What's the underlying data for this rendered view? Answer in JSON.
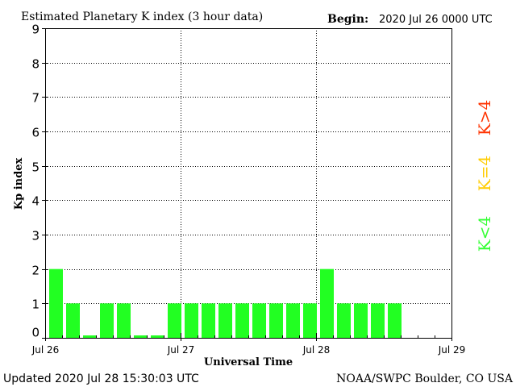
{
  "chart_data": {
    "type": "bar",
    "title": "Estimated Planetary K index (3 hour data)",
    "begin_label": "Begin:",
    "begin_value": "2020 Jul 26 0000 UTC",
    "xlabel": "Universal Time",
    "ylabel": "Kp index",
    "ylim": [
      0,
      9
    ],
    "yticks": [
      "0",
      "1",
      "2",
      "3",
      "4",
      "5",
      "6",
      "7",
      "8",
      "9"
    ],
    "xticks": [
      "Jul 26",
      "Jul 27",
      "Jul 28",
      "Jul 29"
    ],
    "bins_per_day": 8,
    "days": 3,
    "values": [
      2,
      1,
      0,
      1,
      1,
      0,
      0,
      1,
      1,
      1,
      1,
      1,
      1,
      1,
      1,
      1,
      2,
      1,
      1,
      1,
      1
    ],
    "grid": true,
    "legend": [
      {
        "label": "K<4",
        "color": "#33ff33"
      },
      {
        "label": "K=4",
        "color": "#ffcc00"
      },
      {
        "label": "K>4",
        "color": "#ff3300"
      }
    ],
    "bar_color": "#22ff22"
  },
  "footer": {
    "updated": "Updated 2020 Jul 28 15:30:03 UTC",
    "source": "NOAA/SWPC Boulder, CO USA"
  }
}
